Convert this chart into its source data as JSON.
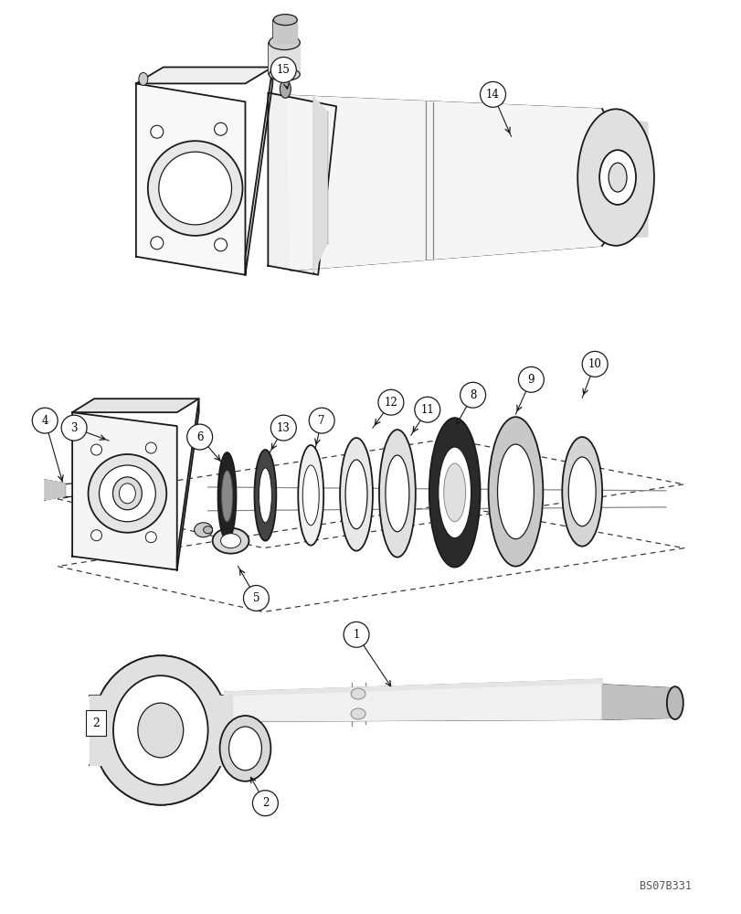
{
  "background_color": "#ffffff",
  "line_color": "#000000",
  "watermark": "BS07B331",
  "fig_width": 8.12,
  "fig_height": 10.0,
  "dpi": 100
}
